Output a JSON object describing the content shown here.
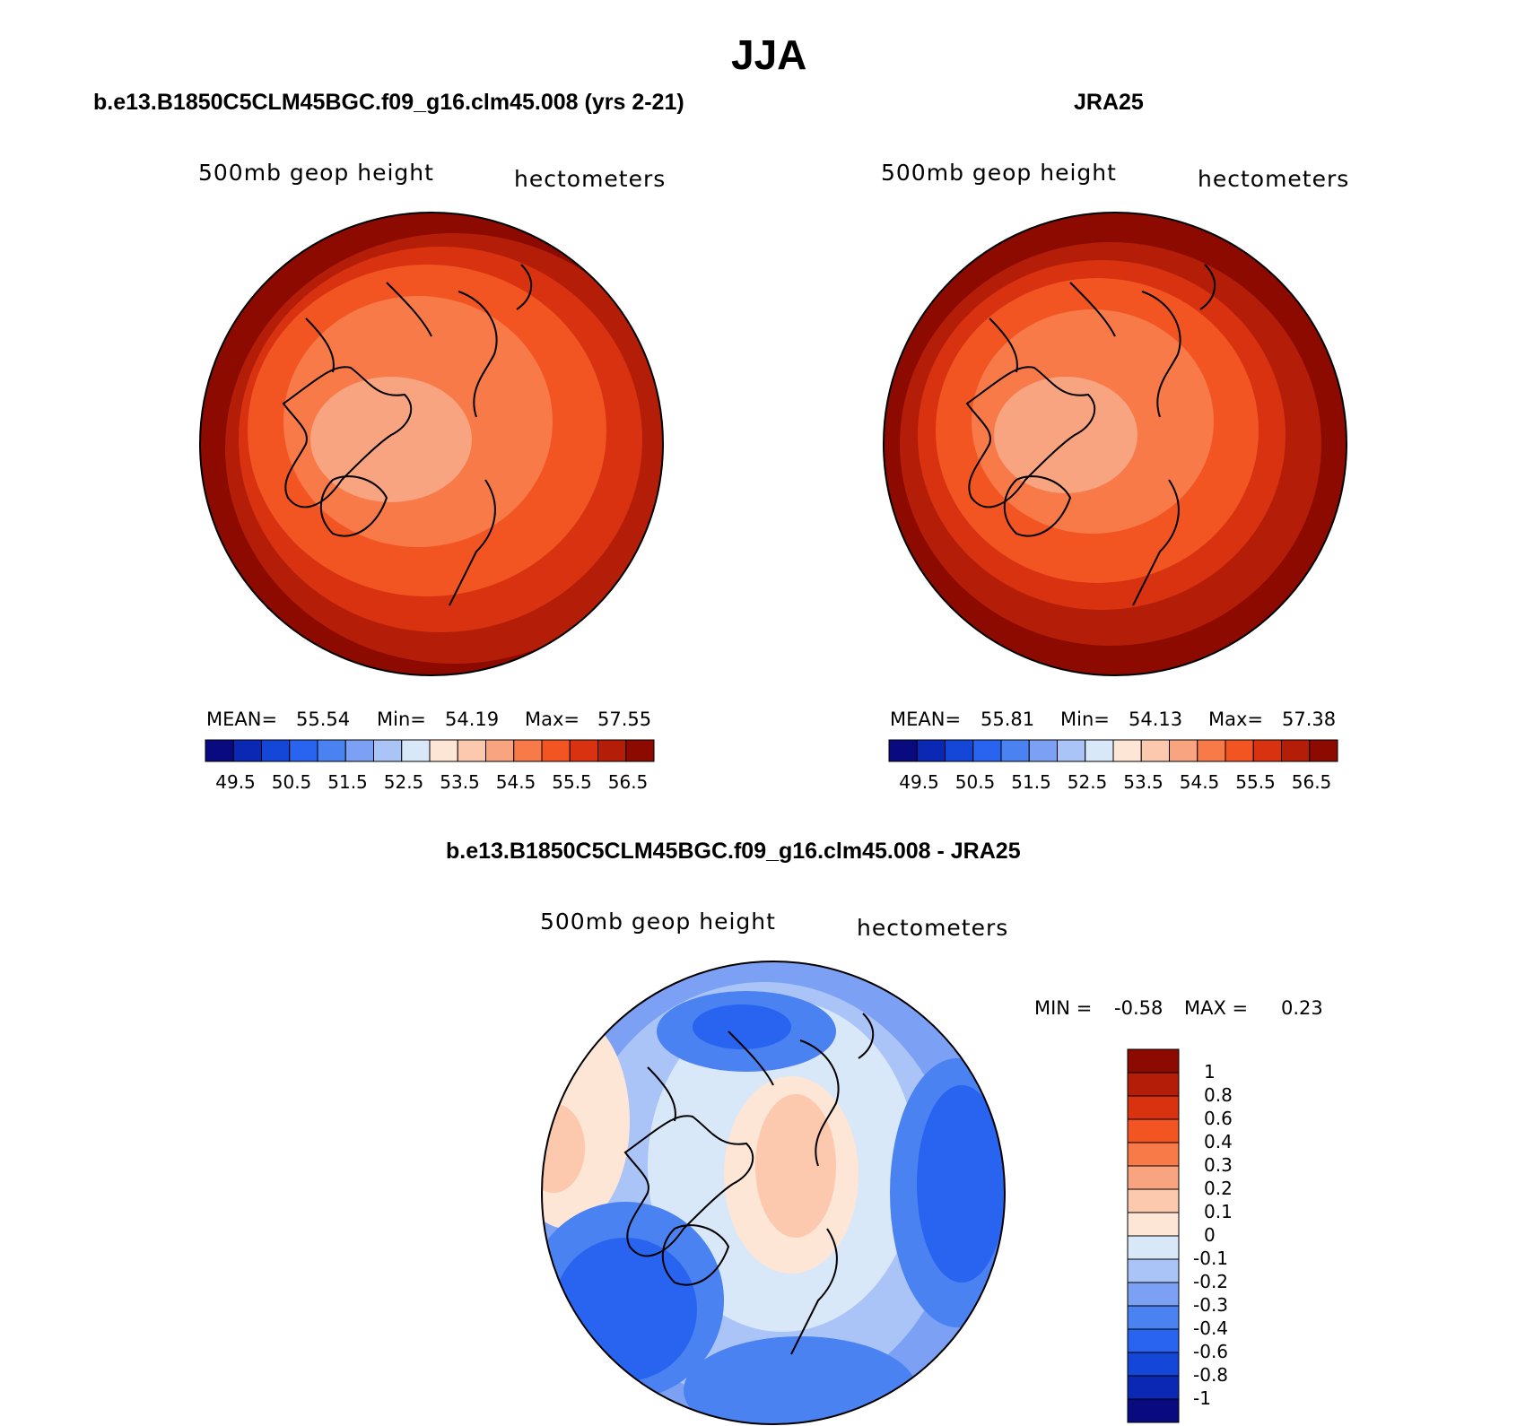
{
  "season_title": "JJA",
  "panels": {
    "model": {
      "title": "b.e13.B1850C5CLM45BGC.f09_g16.clm45.008 (yrs 2-21)",
      "variable": "500mb geop height",
      "units": "hectometers",
      "stats": {
        "mean_label": "MEAN=",
        "mean": "55.54",
        "min_label": "Min=",
        "min": "54.19",
        "max_label": "Max=",
        "max": "57.55"
      }
    },
    "obs": {
      "title": "JRA25",
      "variable": "500mb geop height",
      "units": "hectometers",
      "stats": {
        "mean_label": "MEAN=",
        "mean": "55.81",
        "min_label": "Min=",
        "min": "54.13",
        "max_label": "Max=",
        "max": "57.38"
      }
    },
    "diff": {
      "title": "b.e13.B1850C5CLM45BGC.f09_g16.clm45.008 - JRA25",
      "variable": "500mb geop height",
      "units": "hectometers",
      "minmax": {
        "min_label": "MIN =",
        "min": "-0.58",
        "max_label": "MAX =",
        "max": "0.23"
      }
    }
  },
  "abs_colorbar": {
    "labels": [
      "49.5",
      "50.5",
      "51.5",
      "52.5",
      "53.5",
      "54.5",
      "55.5",
      "56.5"
    ],
    "colors": [
      "#0a0a80",
      "#0a28b4",
      "#1446d8",
      "#2864f0",
      "#4a82f2",
      "#7ca0f4",
      "#aac4f8",
      "#d8e8f8",
      "#fde6d6",
      "#fcc8ae",
      "#f9a480",
      "#f77a48",
      "#f25522",
      "#d93210",
      "#b41e08",
      "#8c0a00"
    ]
  },
  "diff_colorbar": {
    "labels": [
      "1",
      "0.8",
      "0.6",
      "0.4",
      "0.3",
      "0.2",
      "0.1",
      "0",
      "-0.1",
      "-0.2",
      "-0.3",
      "-0.4",
      "-0.6",
      "-0.8",
      "-1"
    ],
    "colors": [
      "#8c0a00",
      "#b41e08",
      "#d93210",
      "#f25522",
      "#f77a48",
      "#f9a480",
      "#fcc8ae",
      "#fde6d6",
      "#d8e8f8",
      "#aac4f8",
      "#7ca0f4",
      "#4a82f2",
      "#2864f0",
      "#1446d8",
      "#0a28b4",
      "#0a0a80"
    ]
  },
  "map_colors": {
    "model": [
      "#8c0a00",
      "#b41e08",
      "#d93210",
      "#f25522",
      "#f77a48",
      "#f9a480"
    ],
    "obs": [
      "#8c0a00",
      "#b41e08",
      "#d93210",
      "#f25522",
      "#f77a48",
      "#f9a480"
    ],
    "diff": {
      "neg_strong": "#2864f0",
      "neg_mid": "#4a82f2",
      "neg_light": "#7ca0f4",
      "neg_pale": "#aac4f8",
      "near_zero": "#d8e8f8",
      "pos_pale": "#fde6d6",
      "pos_light": "#fcc8ae",
      "pos_mid": "#f9a480"
    }
  }
}
